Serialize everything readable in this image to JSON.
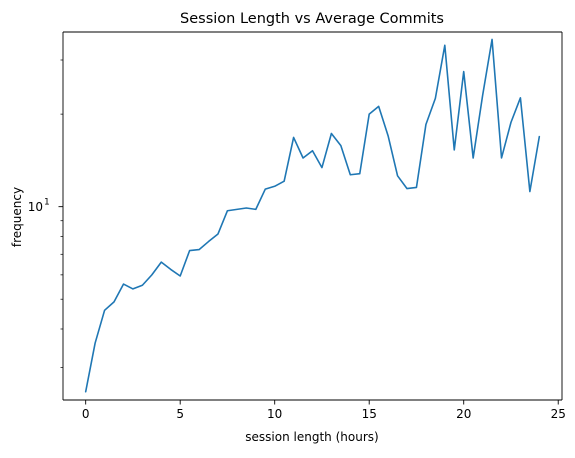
{
  "chart_data": {
    "type": "line",
    "title": "Session Length vs Average Commits",
    "xlabel": "session length (hours)",
    "ylabel": "frequency",
    "yscale": "log",
    "grid": false,
    "legend": "none",
    "xlim": [
      -1.2,
      25.2
    ],
    "ylim": [
      2.35,
      37
    ],
    "x_ticks": [
      0,
      5,
      10,
      15,
      20,
      25
    ],
    "x_tick_labels": [
      "0",
      "5",
      "10",
      "15",
      "20",
      "25"
    ],
    "y_major_ticks": [
      10
    ],
    "y_major_tick_label_base": "10",
    "y_major_tick_label_exp": "1",
    "y_minor_ticks": [
      3,
      4,
      5,
      6,
      7,
      8,
      9,
      20,
      30
    ],
    "line_color": "#1f77b4",
    "series": [
      {
        "x": [
          0,
          0.5,
          1,
          1.5,
          2,
          2.5,
          3,
          3.5,
          4,
          4.5,
          5,
          5.5,
          6,
          6.5,
          7,
          7.5,
          8,
          8.5,
          9,
          9.5,
          10,
          10.5,
          11,
          11.5,
          12,
          12.5,
          13,
          13.5,
          14,
          14.5,
          15,
          15.5,
          16,
          16.5,
          17,
          17.5,
          18,
          18.5,
          19,
          19.5,
          20,
          20.5,
          21,
          21.5,
          22,
          22.5,
          23,
          23.5,
          24
        ],
        "values": [
          2.5,
          3.6,
          4.6,
          4.9,
          5.6,
          5.4,
          5.55,
          6.0,
          6.6,
          6.25,
          5.95,
          7.2,
          7.25,
          7.7,
          8.15,
          9.7,
          9.8,
          9.9,
          9.8,
          11.4,
          11.65,
          12.1,
          16.8,
          14.4,
          15.2,
          13.4,
          17.3,
          15.8,
          12.7,
          12.8,
          20.0,
          21.2,
          17.0,
          12.6,
          11.45,
          11.55,
          18.5,
          22.5,
          33.5,
          15.3,
          27.5,
          14.4,
          23.0,
          35.0,
          14.4,
          18.8,
          22.6,
          11.2,
          16.9
        ]
      }
    ]
  }
}
